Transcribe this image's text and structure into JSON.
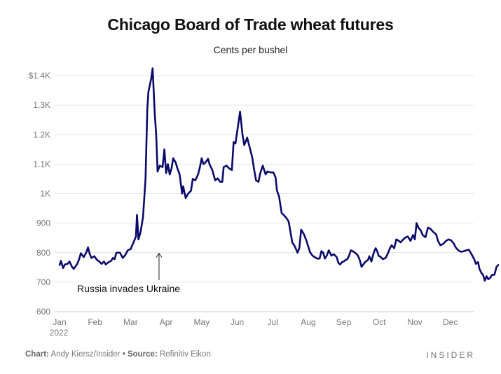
{
  "chart_data": {
    "type": "line",
    "title": "Chicago Board of Trade wheat futures",
    "subtitle": "Cents per bushel",
    "xlabel": "",
    "ylabel": "",
    "ylim": [
      600,
      1400
    ],
    "yticks": [
      {
        "value": 600,
        "label": "600"
      },
      {
        "value": 700,
        "label": "700"
      },
      {
        "value": 800,
        "label": "800"
      },
      {
        "value": 900,
        "label": "900"
      },
      {
        "value": 1000,
        "label": "1K"
      },
      {
        "value": 1100,
        "label": "1.1K"
      },
      {
        "value": 1200,
        "label": "1.2K"
      },
      {
        "value": 1300,
        "label": "1.3K"
      },
      {
        "value": 1400,
        "label": "$1.4K"
      }
    ],
    "xticks": [
      {
        "month": 0,
        "label": "Jan",
        "sublabel": "2022"
      },
      {
        "month": 1,
        "label": "Feb"
      },
      {
        "month": 2,
        "label": "Mar"
      },
      {
        "month": 3,
        "label": "Apr"
      },
      {
        "month": 4,
        "label": "May"
      },
      {
        "month": 5,
        "label": "Jun"
      },
      {
        "month": 6,
        "label": "Jul"
      },
      {
        "month": 7,
        "label": "Aug"
      },
      {
        "month": 8,
        "label": "Sep"
      },
      {
        "month": 9,
        "label": "Oct"
      },
      {
        "month": 10,
        "label": "Nov"
      },
      {
        "month": 11,
        "label": "Dec"
      }
    ],
    "grid": true,
    "line_color": "#0a0a6b",
    "annotation": {
      "text": "Russia invades Ukraine",
      "x": 2.8,
      "y": 798
    },
    "series": [
      {
        "points": [
          [
            0.0,
            758
          ],
          [
            0.04,
            772
          ],
          [
            0.1,
            748
          ],
          [
            0.15,
            760
          ],
          [
            0.22,
            762
          ],
          [
            0.28,
            770
          ],
          [
            0.35,
            752
          ],
          [
            0.4,
            745
          ],
          [
            0.5,
            762
          ],
          [
            0.55,
            778
          ],
          [
            0.6,
            798
          ],
          [
            0.68,
            785
          ],
          [
            0.75,
            800
          ],
          [
            0.8,
            818
          ],
          [
            0.85,
            795
          ],
          [
            0.9,
            782
          ],
          [
            0.98,
            788
          ],
          [
            1.05,
            776
          ],
          [
            1.12,
            770
          ],
          [
            1.18,
            762
          ],
          [
            1.25,
            770
          ],
          [
            1.3,
            760
          ],
          [
            1.38,
            768
          ],
          [
            1.45,
            772
          ],
          [
            1.5,
            782
          ],
          [
            1.55,
            778
          ],
          [
            1.6,
            800
          ],
          [
            1.7,
            800
          ],
          [
            1.78,
            782
          ],
          [
            1.85,
            792
          ],
          [
            1.92,
            808
          ],
          [
            2.0,
            812
          ],
          [
            2.1,
            840
          ],
          [
            2.15,
            855
          ],
          [
            2.18,
            928
          ],
          [
            2.22,
            845
          ],
          [
            2.28,
            870
          ],
          [
            2.35,
            920
          ],
          [
            2.42,
            1050
          ],
          [
            2.47,
            1285
          ],
          [
            2.5,
            1345
          ],
          [
            2.58,
            1390
          ],
          [
            2.62,
            1425
          ],
          [
            2.68,
            1270
          ],
          [
            2.72,
            1200
          ],
          [
            2.76,
            1075
          ],
          [
            2.82,
            1095
          ],
          [
            2.9,
            1090
          ],
          [
            2.95,
            1150
          ],
          [
            3.0,
            1070
          ],
          [
            3.05,
            1100
          ],
          [
            3.1,
            1065
          ],
          [
            3.15,
            1085
          ],
          [
            3.2,
            1120
          ],
          [
            3.27,
            1105
          ],
          [
            3.32,
            1085
          ],
          [
            3.38,
            1065
          ],
          [
            3.45,
            1000
          ],
          [
            3.48,
            1025
          ],
          [
            3.55,
            985
          ],
          [
            3.62,
            1000
          ],
          [
            3.7,
            1010
          ],
          [
            3.75,
            1050
          ],
          [
            3.82,
            1045
          ],
          [
            3.9,
            1065
          ],
          [
            3.95,
            1090
          ],
          [
            4.0,
            1120
          ],
          [
            4.05,
            1100
          ],
          [
            4.1,
            1105
          ],
          [
            4.18,
            1118
          ],
          [
            4.22,
            1100
          ],
          [
            4.3,
            1080
          ],
          [
            4.38,
            1045
          ],
          [
            4.45,
            1052
          ],
          [
            4.52,
            1040
          ],
          [
            4.58,
            1040
          ],
          [
            4.62,
            1090
          ],
          [
            4.7,
            1095
          ],
          [
            4.78,
            1085
          ],
          [
            4.85,
            1080
          ],
          [
            4.9,
            1175
          ],
          [
            4.95,
            1170
          ],
          [
            5.0,
            1210
          ],
          [
            5.08,
            1278
          ],
          [
            5.15,
            1200
          ],
          [
            5.2,
            1165
          ],
          [
            5.25,
            1180
          ],
          [
            5.28,
            1190
          ],
          [
            5.35,
            1158
          ],
          [
            5.42,
            1125
          ],
          [
            5.48,
            1080
          ],
          [
            5.53,
            1045
          ],
          [
            5.6,
            1040
          ],
          [
            5.65,
            1070
          ],
          [
            5.72,
            1095
          ],
          [
            5.8,
            1065
          ],
          [
            5.85,
            1075
          ],
          [
            5.95,
            1072
          ],
          [
            6.02,
            1072
          ],
          [
            6.08,
            1055
          ],
          [
            6.12,
            1010
          ],
          [
            6.18,
            990
          ],
          [
            6.25,
            935
          ],
          [
            6.33,
            925
          ],
          [
            6.4,
            915
          ],
          [
            6.45,
            905
          ],
          [
            6.55,
            835
          ],
          [
            6.62,
            822
          ],
          [
            6.7,
            800
          ],
          [
            6.75,
            815
          ],
          [
            6.8,
            878
          ],
          [
            6.88,
            862
          ],
          [
            6.95,
            840
          ],
          [
            7.05,
            802
          ],
          [
            7.12,
            790
          ],
          [
            7.18,
            785
          ],
          [
            7.25,
            780
          ],
          [
            7.32,
            780
          ],
          [
            7.37,
            805
          ],
          [
            7.42,
            800
          ],
          [
            7.47,
            780
          ],
          [
            7.52,
            790
          ],
          [
            7.58,
            808
          ],
          [
            7.65,
            790
          ],
          [
            7.72,
            795
          ],
          [
            7.8,
            785
          ],
          [
            7.85,
            765
          ],
          [
            7.9,
            760
          ],
          [
            7.95,
            768
          ],
          [
            8.0,
            770
          ],
          [
            8.05,
            775
          ],
          [
            8.1,
            778
          ],
          [
            8.15,
            790
          ],
          [
            8.2,
            808
          ],
          [
            8.25,
            805
          ],
          [
            8.32,
            800
          ],
          [
            8.4,
            790
          ],
          [
            8.45,
            775
          ],
          [
            8.5,
            752
          ],
          [
            8.55,
            760
          ],
          [
            8.6,
            768
          ],
          [
            8.68,
            775
          ],
          [
            8.72,
            788
          ],
          [
            8.78,
            770
          ],
          [
            8.82,
            790
          ],
          [
            8.86,
            805
          ],
          [
            8.9,
            815
          ],
          [
            8.94,
            805
          ],
          [
            8.98,
            790
          ],
          [
            9.04,
            785
          ],
          [
            9.1,
            778
          ],
          [
            9.18,
            782
          ],
          [
            9.25,
            800
          ],
          [
            9.3,
            815
          ],
          [
            9.35,
            825
          ],
          [
            9.42,
            815
          ],
          [
            9.48,
            845
          ],
          [
            9.55,
            840
          ],
          [
            9.6,
            835
          ],
          [
            9.65,
            842
          ],
          [
            9.72,
            850
          ],
          [
            9.8,
            855
          ],
          [
            9.88,
            840
          ],
          [
            9.95,
            860
          ],
          [
            10.0,
            845
          ],
          [
            10.05,
            900
          ],
          [
            10.1,
            885
          ],
          [
            10.17,
            875
          ],
          [
            10.22,
            860
          ],
          [
            10.3,
            852
          ],
          [
            10.37,
            885
          ],
          [
            10.45,
            880
          ],
          [
            10.52,
            870
          ],
          [
            10.6,
            862
          ],
          [
            10.65,
            840
          ],
          [
            10.72,
            825
          ],
          [
            10.8,
            830
          ],
          [
            10.88,
            840
          ],
          [
            10.95,
            845
          ],
          [
            11.02,
            842
          ],
          [
            11.1,
            830
          ],
          [
            11.15,
            818
          ],
          [
            11.22,
            808
          ],
          [
            11.3,
            803
          ],
          [
            11.38,
            805
          ],
          [
            11.45,
            808
          ],
          [
            11.52,
            810
          ],
          [
            11.58,
            798
          ],
          [
            11.62,
            790
          ],
          [
            11.68,
            775
          ],
          [
            11.72,
            762
          ],
          [
            11.78,
            768
          ],
          [
            11.82,
            745
          ],
          [
            11.88,
            730
          ],
          [
            11.92,
            725
          ],
          [
            11.97,
            705
          ],
          [
            12.02,
            720
          ],
          [
            12.07,
            710
          ],
          [
            12.12,
            715
          ],
          [
            12.18,
            725
          ],
          [
            12.24,
            725
          ],
          [
            12.3,
            752
          ],
          [
            12.35,
            758
          ]
        ]
      }
    ]
  },
  "footer": {
    "chart_label": "Chart:",
    "chart_credit": "Andy Kiersz/Insider",
    "separator": "•",
    "source_label": "Source:",
    "source_credit": "Refinitiv Eikon",
    "brand": "INSIDER"
  }
}
